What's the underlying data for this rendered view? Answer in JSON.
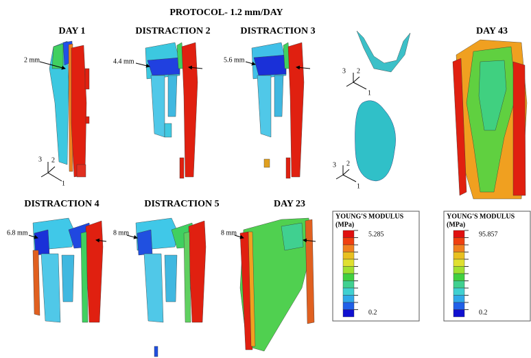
{
  "title": "PROTOCOL- 1.2 mm/DAY",
  "panels": [
    {
      "label": "DAY 1",
      "annotation": "2 mm"
    },
    {
      "label": "DISTRACTION 2",
      "annotation": "4.4 mm"
    },
    {
      "label": "DISTRACTION 3",
      "annotation": "5.6 mm"
    },
    {
      "label": "DAY 43"
    },
    {
      "label": "DISTRACTION 4",
      "annotation": "6.8 mm"
    },
    {
      "label": "DISTRACTION 5",
      "annotation": "8 mm"
    },
    {
      "label": "DAY 23",
      "annotation": "8 mm"
    }
  ],
  "triads": [
    [
      "3",
      "2",
      "1"
    ],
    [
      "3",
      "2",
      "1"
    ],
    [
      "3",
      "2",
      "1"
    ]
  ],
  "legends": [
    {
      "title": "YOUNG'S MODULUS",
      "unit": "(MPa)",
      "max": "5.285",
      "min": "0.2"
    },
    {
      "title": "YOUNG'S MODULUS",
      "unit": "(MPa)",
      "max": "95.857",
      "min": "0.2"
    }
  ]
}
